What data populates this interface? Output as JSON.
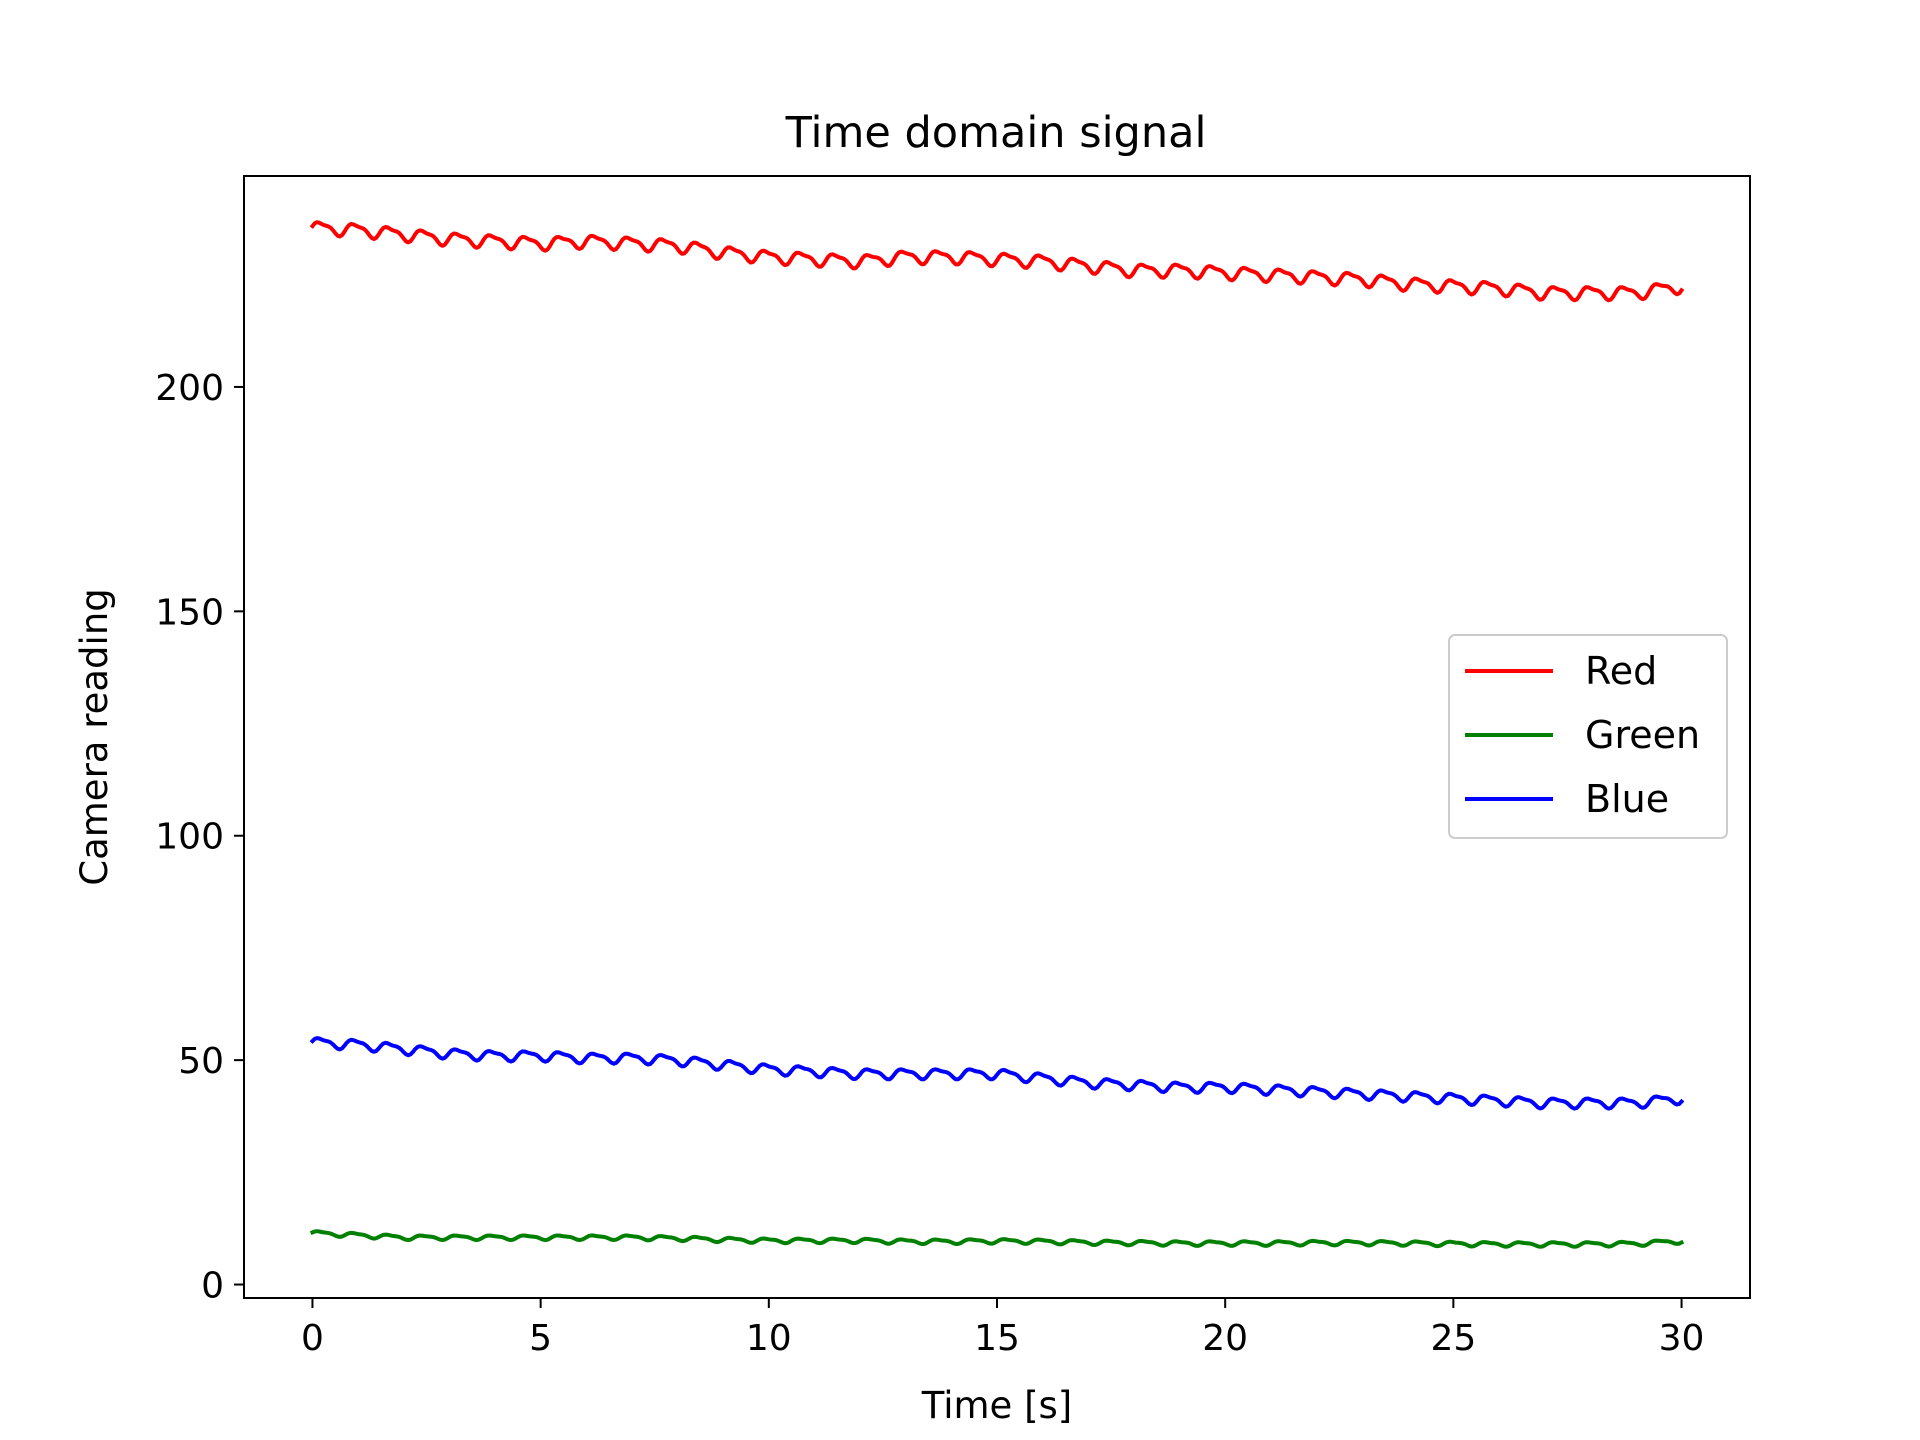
{
  "chart_data": {
    "type": "line",
    "title": "Time domain signal",
    "xlabel": "Time [s]",
    "ylabel": "Camera reading",
    "xlim": [
      -1.5,
      31.5
    ],
    "ylim": [
      -3,
      247
    ],
    "xticks": [
      {
        "value": 0,
        "label": "0"
      },
      {
        "value": 5,
        "label": "5"
      },
      {
        "value": 10,
        "label": "10"
      },
      {
        "value": 15,
        "label": "15"
      },
      {
        "value": 20,
        "label": "20"
      },
      {
        "value": 25,
        "label": "25"
      },
      {
        "value": 30,
        "label": "30"
      }
    ],
    "yticks": [
      {
        "value": 0,
        "label": "0"
      },
      {
        "value": 50,
        "label": "50"
      },
      {
        "value": 100,
        "label": "100"
      },
      {
        "value": 150,
        "label": "150"
      },
      {
        "value": 200,
        "label": "200"
      }
    ],
    "grid": false,
    "legend_position": "center-right",
    "x": [
      0,
      1,
      2,
      3,
      4,
      5,
      6,
      7,
      8,
      9,
      10,
      11,
      12,
      13,
      14,
      15,
      16,
      17,
      18,
      19,
      20,
      21,
      22,
      23,
      24,
      25,
      26,
      27,
      28,
      29,
      30
    ],
    "series": [
      {
        "name": "Red",
        "color": "#ff0000",
        "values": [
          235.5,
          235,
          234,
          233,
          232.5,
          232,
          232.5,
          232,
          231.5,
          230,
          229,
          228.5,
          228,
          229,
          229,
          228.5,
          228,
          227,
          226,
          226,
          225.5,
          225,
          224.5,
          224,
          223,
          222.5,
          222,
          221,
          221,
          221,
          222.5
        ]
      },
      {
        "name": "Green",
        "color": "#008000",
        "values": [
          11.5,
          11,
          10.5,
          10.5,
          10.5,
          10.5,
          10.5,
          10.5,
          10.3,
          10,
          9.8,
          9.8,
          9.8,
          9.6,
          9.6,
          9.7,
          9.6,
          9.4,
          9.3,
          9.2,
          9.2,
          9.2,
          9.3,
          9.3,
          9.2,
          9.1,
          9.0,
          9.0,
          9.0,
          9.1,
          9.7
        ]
      },
      {
        "name": "Blue",
        "color": "#0000ff",
        "values": [
          54,
          53.5,
          52.5,
          51.5,
          51,
          51,
          50.5,
          50.5,
          50,
          49,
          48,
          47.5,
          47,
          47,
          47,
          47,
          46,
          45,
          44.5,
          44,
          44,
          43.5,
          43,
          42.5,
          42,
          41.5,
          41,
          40.5,
          40.5,
          40.5,
          41.5
        ]
      }
    ]
  }
}
